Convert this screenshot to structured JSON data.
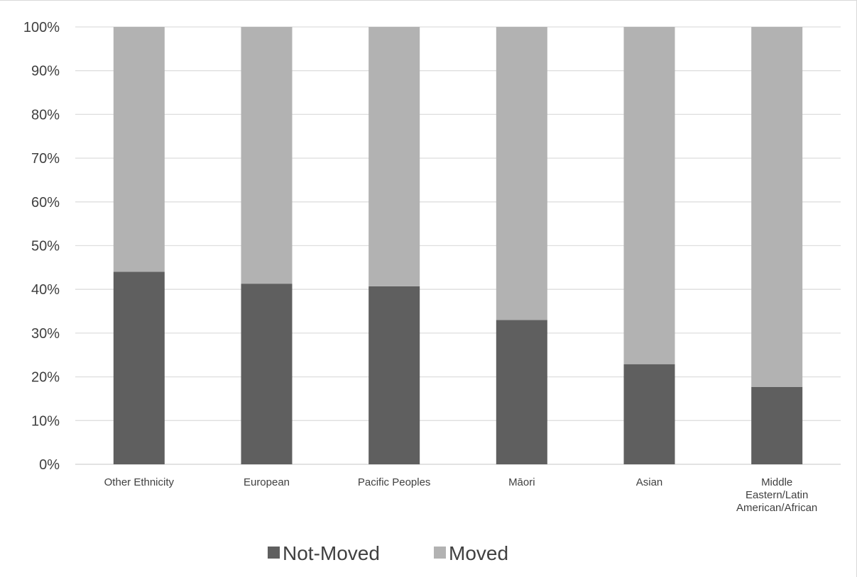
{
  "chart_data": {
    "type": "bar",
    "stacked": true,
    "percent": true,
    "categories": [
      "Other Ethnicity",
      "European",
      "Pacific Peoples",
      "Māori",
      "Asian",
      "Middle Eastern/Latin American/African"
    ],
    "category_lines": [
      [
        "Other Ethnicity"
      ],
      [
        "European"
      ],
      [
        "Pacific Peoples"
      ],
      [
        "Māori"
      ],
      [
        "Asian"
      ],
      [
        "Middle",
        "Eastern/Latin",
        "American/African"
      ]
    ],
    "series": [
      {
        "name": "Not-Moved",
        "color": "#5f5f5f",
        "values": [
          44,
          41.3,
          40.7,
          33,
          22.9,
          17.7
        ]
      },
      {
        "name": "Moved",
        "color": "#b2b2b2",
        "values": [
          56,
          58.7,
          59.3,
          67,
          77.1,
          82.3
        ]
      }
    ],
    "ylim": [
      0,
      100
    ],
    "yticks": [
      "0%",
      "10%",
      "20%",
      "30%",
      "40%",
      "50%",
      "60%",
      "70%",
      "80%",
      "90%",
      "100%"
    ],
    "grid": true,
    "legend": "bottom",
    "title": "",
    "xlabel": "",
    "ylabel": ""
  }
}
